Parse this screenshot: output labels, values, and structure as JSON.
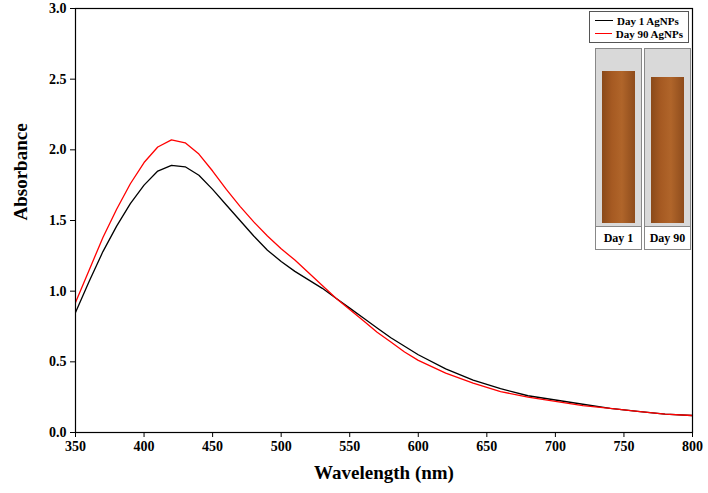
{
  "chart_data": {
    "type": "line",
    "x_label": "Wavelength (nm)",
    "y_label": "Absorbance",
    "xlim": [
      350,
      800
    ],
    "xticks": [
      350,
      400,
      450,
      500,
      550,
      600,
      650,
      700,
      750,
      800
    ],
    "ylim": [
      0,
      3
    ],
    "yticks": [
      {
        "value": 0,
        "label": "0.0"
      },
      0.5,
      {
        "value": 1,
        "label": "1.0"
      },
      1.5,
      {
        "value": 2,
        "label": "2.0"
      },
      2.5,
      {
        "value": 3,
        "label": "3.0"
      }
    ],
    "legend": "top-right",
    "annotations": [
      "Day 1",
      "Day 90"
    ],
    "x": [
      350,
      360,
      370,
      380,
      390,
      400,
      410,
      420,
      430,
      440,
      450,
      460,
      470,
      480,
      490,
      500,
      510,
      520,
      530,
      540,
      550,
      560,
      570,
      580,
      590,
      600,
      620,
      640,
      660,
      680,
      700,
      720,
      740,
      760,
      780,
      800
    ],
    "series": [
      {
        "name": "Day 1 AgNPs",
        "color": "#000000",
        "values": [
          0.85,
          1.07,
          1.28,
          1.46,
          1.62,
          1.75,
          1.85,
          1.89,
          1.88,
          1.82,
          1.72,
          1.61,
          1.5,
          1.39,
          1.29,
          1.21,
          1.14,
          1.08,
          1.02,
          0.95,
          0.88,
          0.81,
          0.74,
          0.67,
          0.61,
          0.55,
          0.45,
          0.37,
          0.31,
          0.26,
          0.23,
          0.2,
          0.17,
          0.15,
          0.13,
          0.12
        ]
      },
      {
        "name": "Day 90 AgNPs",
        "color": "#ff0000",
        "values": [
          0.92,
          1.15,
          1.38,
          1.58,
          1.76,
          1.91,
          2.02,
          2.07,
          2.05,
          1.97,
          1.85,
          1.72,
          1.6,
          1.49,
          1.39,
          1.3,
          1.22,
          1.13,
          1.04,
          0.95,
          0.87,
          0.79,
          0.71,
          0.64,
          0.57,
          0.51,
          0.42,
          0.35,
          0.29,
          0.25,
          0.22,
          0.19,
          0.17,
          0.15,
          0.13,
          0.12
        ]
      }
    ]
  }
}
